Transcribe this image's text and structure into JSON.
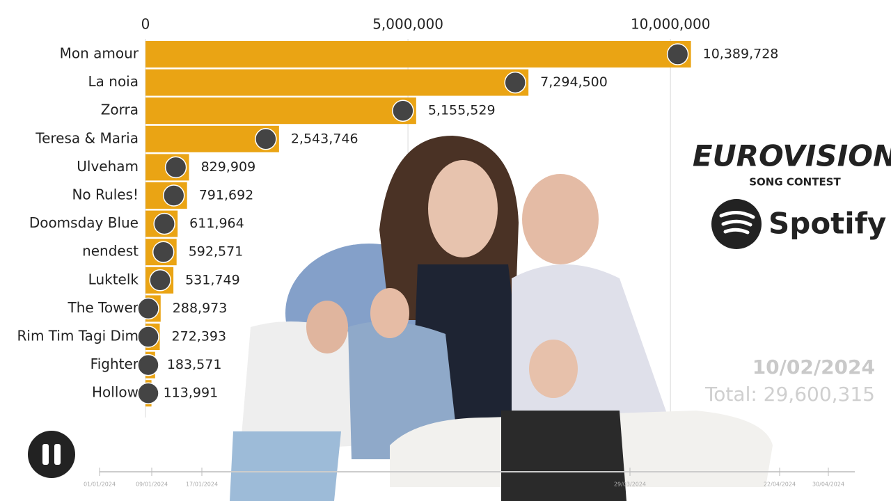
{
  "chart_data": {
    "type": "bar",
    "orientation": "horizontal",
    "categories": [
      "Mon amour",
      "La noia",
      "Zorra",
      "Teresa & Maria",
      "Ulveham",
      "No Rules!",
      "Doomsday Blue",
      "nendest",
      "Luktelk",
      "The Tower",
      "Rim Tim Tagi Dim",
      "Fighter",
      "Hollow"
    ],
    "values": [
      10389728,
      7294500,
      5155529,
      2543746,
      829909,
      791692,
      611964,
      592571,
      531749,
      288973,
      272393,
      183571,
      113991
    ],
    "value_labels": [
      "10,389,728",
      "7,294,500",
      "5,155,529",
      "2,543,746",
      "829,909",
      "791,692",
      "611,964",
      "592,571",
      "531,749",
      "288,973",
      "272,393",
      "183,571",
      "113,991"
    ],
    "color": "#eaa414",
    "xlim": [
      0,
      14200000
    ],
    "xticks": [
      0,
      {
        "value": 5000000,
        "label": "5,000,000"
      },
      {
        "value": 10000000,
        "label": "10,000,000"
      }
    ],
    "grid": true
  },
  "date": "10/02/2024",
  "total": "Total: 29,600,315",
  "timeline_labels": [
    "01/01/2024",
    "09/01/2024",
    "17/01/2024",
    "29/03/2024",
    "22/04/2024",
    "30/04/2024"
  ],
  "logos": {
    "eurovision": "EUROVISION",
    "song_contest": "SONG CONTEST",
    "spotify": "Spotify"
  }
}
